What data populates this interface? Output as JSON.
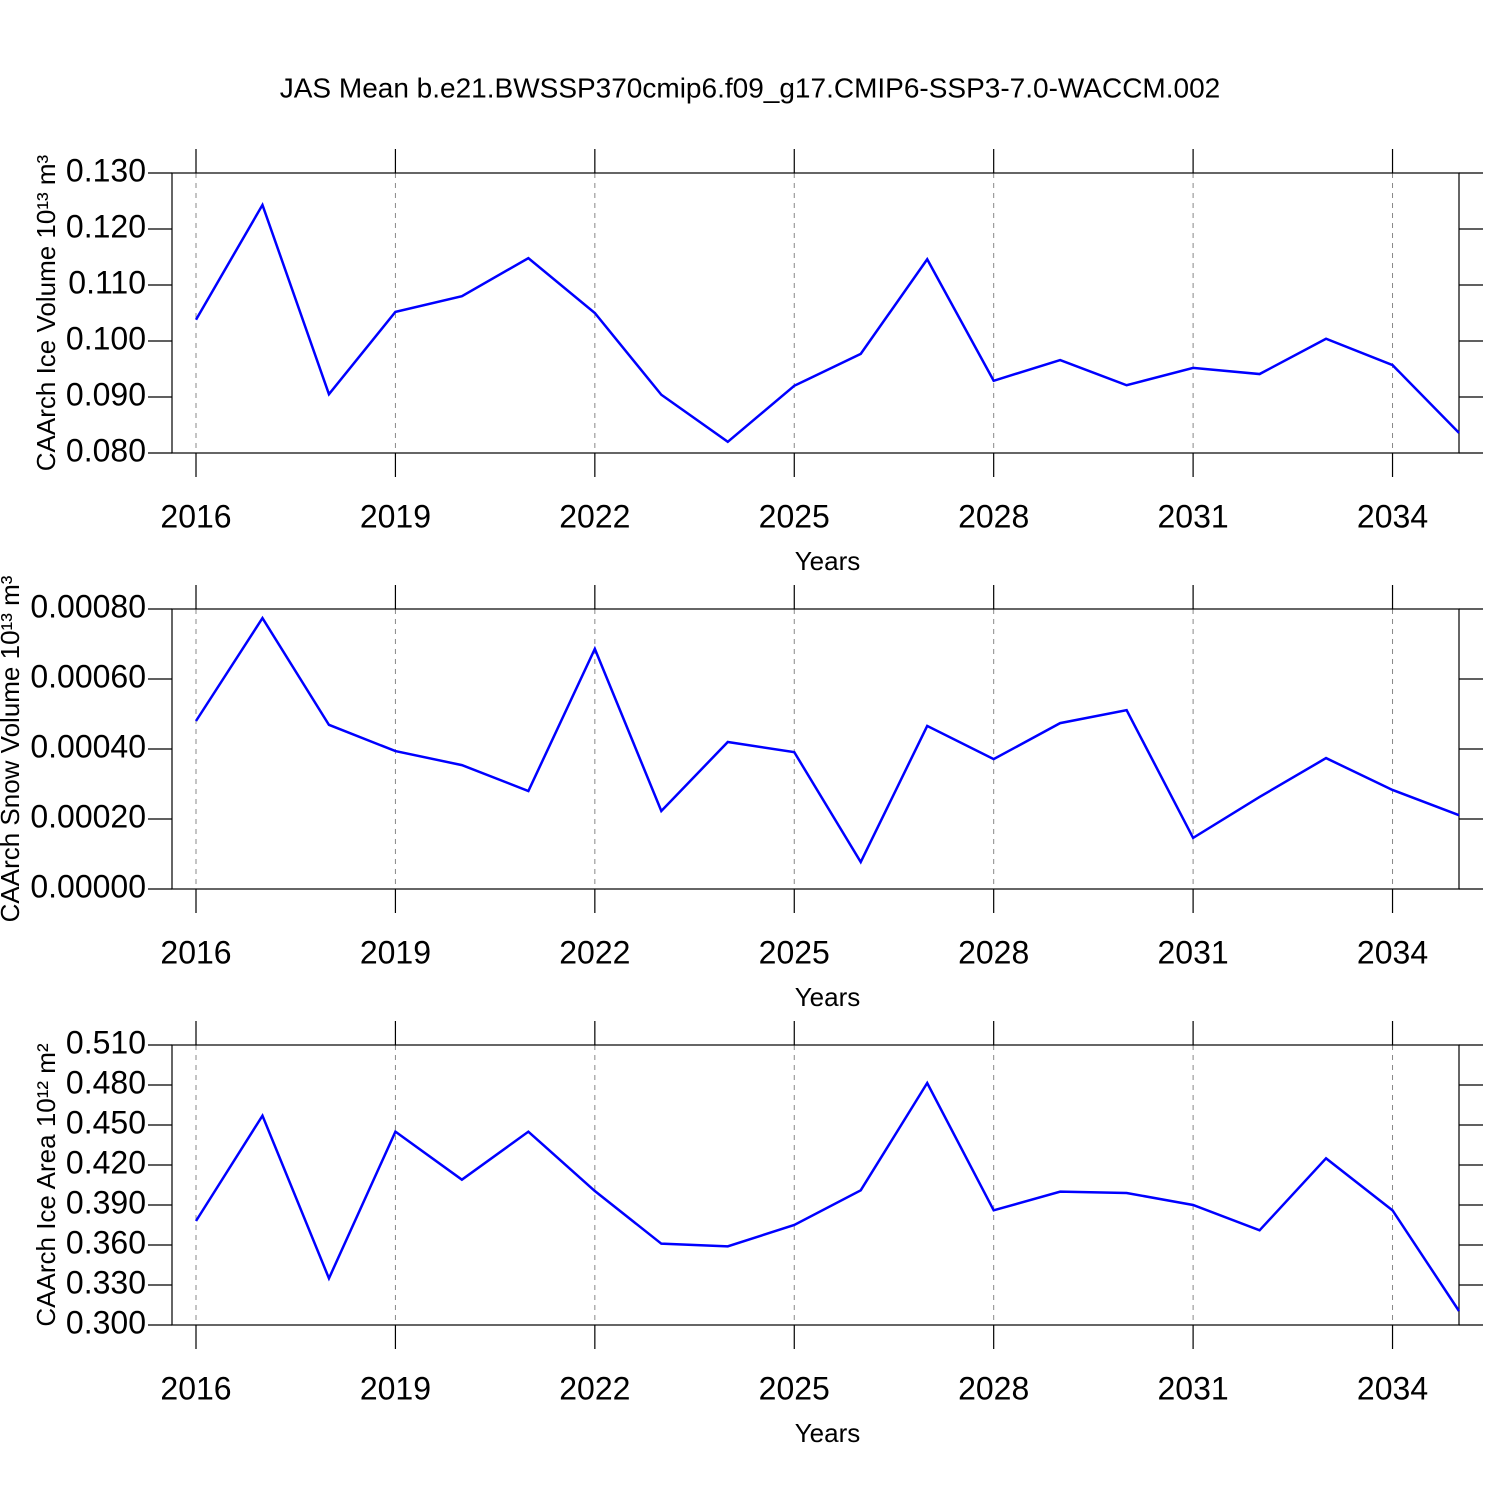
{
  "chart_data": [
    {
      "type": "line",
      "title": "JAS Mean b.e21.BWSSP370cmip6.f09_g17.CMIP6-SSP3-7.0-WACCM.002",
      "y_label": "CAArch Ice Volume 10¹³ m³",
      "x_label": "Years",
      "x": [
        2016,
        2017,
        2018,
        2019,
        2020,
        2021,
        2022,
        2023,
        2024,
        2025,
        2026,
        2027,
        2028,
        2029,
        2030,
        2031,
        2032,
        2033,
        2034,
        2035
      ],
      "values": [
        0.1038,
        0.1243,
        0.0905,
        0.1052,
        0.108,
        0.1148,
        0.105,
        0.0904,
        0.082,
        0.092,
        0.0977,
        0.1146,
        0.0929,
        0.0966,
        0.0921,
        0.0952,
        0.0941,
        0.1004,
        0.0957,
        0.0836
      ],
      "color": "#0000ff",
      "xlim": [
        2016,
        2035
      ],
      "xticks": [
        2016,
        2019,
        2022,
        2025,
        2028,
        2031,
        2034
      ],
      "ylim": [
        0.08,
        0.13
      ],
      "yticks": [
        {
          "value": 0.08,
          "label": "0.080"
        },
        {
          "value": 0.09,
          "label": "0.090"
        },
        {
          "value": 0.1,
          "label": "0.100"
        },
        {
          "value": 0.11,
          "label": "0.110"
        },
        {
          "value": 0.12,
          "label": "0.120"
        },
        {
          "value": 0.13,
          "label": "0.130"
        }
      ],
      "grid": true
    },
    {
      "type": "line",
      "y_label": "CAArch Snow Volume 10¹³ m³",
      "x_label": "Years",
      "x": [
        2016,
        2017,
        2018,
        2019,
        2020,
        2021,
        2022,
        2023,
        2024,
        2025,
        2026,
        2027,
        2028,
        2029,
        2030,
        2031,
        2032,
        2033,
        2034,
        2035
      ],
      "values": [
        0.00048,
        0.000774,
        0.000469,
        0.000394,
        0.000354,
        0.00028,
        0.000686,
        0.000223,
        0.00042,
        0.000391,
        7.7e-05,
        0.000466,
        0.000371,
        0.000474,
        0.000511,
        0.000146,
        0.000263,
        0.000374,
        0.000283,
        0.000211
      ],
      "color": "#0000ff",
      "xlim": [
        2016,
        2035
      ],
      "xticks": [
        2016,
        2019,
        2022,
        2025,
        2028,
        2031,
        2034
      ],
      "ylim": [
        0,
        0.0008
      ],
      "yticks": [
        {
          "value": 0,
          "label": "0.00000"
        },
        {
          "value": 0.0002,
          "label": "0.00020"
        },
        {
          "value": 0.0004,
          "label": "0.00040"
        },
        {
          "value": 0.0006,
          "label": "0.00060"
        },
        {
          "value": 0.0008,
          "label": "0.00080"
        }
      ],
      "grid": true
    },
    {
      "type": "line",
      "y_label": "CAArch Ice Area 10¹² m²",
      "x_label": "Years",
      "x": [
        2016,
        2017,
        2018,
        2019,
        2020,
        2021,
        2022,
        2023,
        2024,
        2025,
        2026,
        2027,
        2028,
        2029,
        2030,
        2031,
        2032,
        2033,
        2034,
        2035
      ],
      "values": [
        0.378,
        0.457,
        0.335,
        0.445,
        0.409,
        0.445,
        0.4005,
        0.361,
        0.359,
        0.375,
        0.401,
        0.4815,
        0.386,
        0.4,
        0.399,
        0.39,
        0.371,
        0.425,
        0.386,
        0.3105
      ],
      "color": "#0000ff",
      "xlim": [
        2016,
        2035
      ],
      "xticks": [
        2016,
        2019,
        2022,
        2025,
        2028,
        2031,
        2034
      ],
      "ylim": [
        0.3,
        0.51
      ],
      "yticks": [
        {
          "value": 0.3,
          "label": "0.300"
        },
        {
          "value": 0.33,
          "label": "0.330"
        },
        {
          "value": 0.36,
          "label": "0.360"
        },
        {
          "value": 0.39,
          "label": "0.390"
        },
        {
          "value": 0.42,
          "label": "0.420"
        },
        {
          "value": 0.45,
          "label": "0.450"
        },
        {
          "value": 0.48,
          "label": "0.480"
        },
        {
          "value": 0.51,
          "label": "0.510"
        }
      ],
      "grid": true
    }
  ]
}
